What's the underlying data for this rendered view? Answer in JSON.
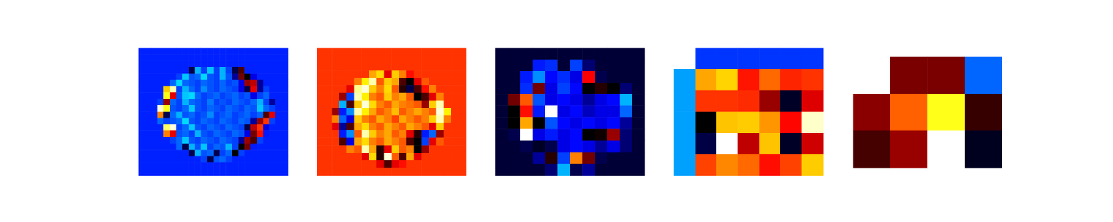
{
  "chart_data": [
    {
      "type": "heatmap",
      "tick_labels": false,
      "color_range": [
        -1,
        1
      ],
      "cells": [
        [
          -0.42,
          -0.42,
          -0.42,
          -0.42,
          -0.42,
          -0.42,
          -0.42,
          -0.42,
          -0.42,
          -0.42,
          -0.42,
          -0.42,
          -0.42,
          -0.42,
          -0.42,
          -0.42,
          -0.42,
          -0.42,
          -0.42,
          -0.42,
          -0.42,
          -0.42,
          -0.42,
          -0.42
        ],
        [
          -0.42,
          -0.42,
          -0.42,
          -0.42,
          -0.42,
          -0.42,
          -0.42,
          -0.42,
          -0.42,
          -0.42,
          -0.42,
          -0.42,
          -0.42,
          -0.42,
          -0.42,
          -0.42,
          -0.42,
          -0.42,
          -0.42,
          -0.42,
          -0.42,
          -0.42,
          -0.42,
          -0.42
        ],
        [
          -0.42,
          -0.42,
          -0.42,
          -0.42,
          -0.42,
          -0.42,
          -0.42,
          -0.42,
          -0.42,
          -0.42,
          -0.42,
          -0.42,
          -0.42,
          -0.42,
          -0.42,
          -0.42,
          -0.42,
          -0.42,
          -0.42,
          -0.42,
          -0.42,
          -0.42,
          -0.42,
          -0.42
        ],
        [
          -0.42,
          -0.42,
          -0.42,
          -0.42,
          -0.42,
          -0.42,
          -0.42,
          -0.42,
          -0.1,
          -0.8,
          -0.5,
          -0.85,
          -0.5,
          -0.8,
          -0.5,
          -0.1,
          0.1,
          -0.42,
          -0.42,
          -0.42,
          -0.42,
          -0.42,
          -0.42,
          -0.42
        ],
        [
          -0.42,
          -0.42,
          -0.42,
          -0.42,
          -0.42,
          -0.42,
          -0.5,
          -0.85,
          -0.55,
          -0.6,
          -0.9,
          -0.55,
          -0.5,
          -0.8,
          -0.55,
          -0.2,
          0.15,
          0.0,
          -0.3,
          -0.42,
          -0.42,
          -0.42,
          -0.42,
          -0.42
        ],
        [
          -0.42,
          -0.42,
          -0.42,
          -0.42,
          -0.42,
          -0.6,
          -0.9,
          -0.6,
          -0.55,
          -0.5,
          -0.6,
          -0.55,
          -0.5,
          -0.6,
          -0.5,
          -0.55,
          -0.3,
          0.2,
          0.25,
          -0.2,
          -0.42,
          -0.42,
          -0.42,
          -0.42
        ],
        [
          -0.42,
          -0.42,
          -0.42,
          -0.42,
          0.6,
          0.9,
          -0.5,
          -0.8,
          -0.6,
          -0.5,
          -0.7,
          -0.55,
          -0.5,
          -0.6,
          -0.55,
          -0.5,
          -0.3,
          -0.1,
          0.3,
          -0.2,
          -0.5,
          -0.42,
          -0.42,
          -0.42
        ],
        [
          -0.42,
          -0.42,
          -0.42,
          -0.42,
          0.7,
          0.3,
          -0.55,
          -0.85,
          -0.9,
          -0.6,
          -0.5,
          -0.55,
          -0.6,
          -0.5,
          -0.55,
          -0.6,
          -0.5,
          -0.55,
          -0.3,
          -0.5,
          -0.6,
          -0.42,
          -0.42,
          -0.42
        ],
        [
          -0.42,
          -0.42,
          -0.42,
          -0.5,
          0.2,
          -0.6,
          -0.5,
          -0.8,
          -0.6,
          -0.55,
          -0.5,
          -0.65,
          -0.5,
          -0.55,
          -0.5,
          -0.6,
          -0.55,
          -0.5,
          -0.6,
          -0.8,
          -0.5,
          -0.2,
          -0.42,
          -0.42
        ],
        [
          -0.42,
          -0.42,
          -0.42,
          0.95,
          0.7,
          -0.55,
          -0.5,
          -0.6,
          -0.85,
          -0.55,
          -0.5,
          -0.6,
          -0.55,
          -0.5,
          -0.6,
          -0.55,
          -0.5,
          -0.6,
          -0.55,
          -0.85,
          -0.6,
          -0.5,
          -0.42,
          -0.42
        ],
        [
          -0.42,
          -0.42,
          -0.42,
          0.5,
          -0.1,
          -0.6,
          -0.8,
          -0.55,
          -0.6,
          -0.5,
          -0.55,
          -0.7,
          -0.5,
          -0.55,
          -0.6,
          -0.5,
          -0.55,
          -0.6,
          -0.5,
          -0.6,
          0.1,
          0.3,
          -0.42,
          -0.42
        ],
        [
          -0.42,
          -0.42,
          -0.42,
          -0.6,
          -0.5,
          -0.55,
          -0.6,
          -0.9,
          -0.55,
          -0.5,
          -0.6,
          -0.55,
          -0.5,
          -0.6,
          -0.55,
          -0.5,
          -0.6,
          -0.55,
          -0.2,
          0.2,
          0.4,
          -0.5,
          -0.42,
          -0.42
        ],
        [
          -0.42,
          -0.42,
          -0.42,
          -0.42,
          0.8,
          0.95,
          -0.5,
          -0.6,
          -0.85,
          -0.55,
          -0.5,
          -0.6,
          -0.55,
          -0.5,
          -0.6,
          -0.55,
          -0.5,
          -0.1,
          0.25,
          0.4,
          -0.3,
          -0.42,
          -0.42,
          -0.42
        ],
        [
          -0.42,
          -0.42,
          -0.42,
          -0.42,
          0.5,
          0.3,
          -0.55,
          -0.6,
          -0.5,
          -0.8,
          -0.55,
          -0.5,
          -0.6,
          -0.55,
          -0.5,
          -0.6,
          -0.55,
          -0.3,
          0.15,
          0.35,
          -0.4,
          -0.42,
          -0.42,
          -0.42
        ],
        [
          -0.42,
          -0.42,
          -0.42,
          -0.42,
          -0.42,
          -0.5,
          -0.6,
          -0.85,
          -0.55,
          -0.5,
          -0.6,
          -0.55,
          -0.5,
          -0.6,
          -0.55,
          -0.5,
          -0.2,
          0.2,
          0.1,
          -0.5,
          -0.42,
          -0.42,
          -0.42,
          -0.42
        ],
        [
          -0.42,
          -0.42,
          -0.42,
          -0.42,
          -0.42,
          -0.42,
          -0.6,
          -0.1,
          -0.8,
          -0.55,
          -0.85,
          -0.5,
          -0.6,
          -0.55,
          -0.8,
          -0.5,
          0.0,
          0.15,
          -0.4,
          -0.42,
          -0.42,
          -0.42,
          -0.42,
          -0.42
        ],
        [
          -0.42,
          -0.42,
          -0.42,
          -0.42,
          -0.42,
          -0.42,
          -0.42,
          -0.42,
          -0.1,
          -0.8,
          -0.55,
          -0.6,
          -0.1,
          -0.5,
          -0.6,
          0.0,
          -0.5,
          -0.42,
          -0.42,
          -0.42,
          -0.42,
          -0.42,
          -0.42,
          -0.42
        ],
        [
          -0.42,
          -0.42,
          -0.42,
          -0.42,
          -0.42,
          -0.42,
          -0.42,
          -0.42,
          -0.42,
          -0.42,
          -0.5,
          -0.1,
          -0.55,
          -0.6,
          -0.5,
          -0.42,
          -0.42,
          -0.42,
          -0.42,
          -0.42,
          -0.42,
          -0.42,
          -0.42,
          -0.42
        ],
        [
          -0.42,
          -0.42,
          -0.42,
          -0.42,
          -0.42,
          -0.42,
          -0.42,
          -0.42,
          -0.42,
          -0.42,
          -0.42,
          -0.42,
          -0.42,
          -0.42,
          -0.42,
          -0.42,
          -0.42,
          -0.42,
          -0.42,
          -0.42,
          -0.42,
          -0.42,
          -0.42,
          -0.42
        ],
        [
          -0.42,
          -0.42,
          -0.42,
          -0.42,
          -0.42,
          -0.42,
          -0.42,
          -0.42,
          -0.42,
          -0.42,
          -0.42,
          -0.42,
          -0.42,
          -0.42,
          -0.42,
          -0.42,
          -0.42,
          -0.42,
          -0.42,
          -0.42,
          -0.42,
          -0.42,
          -0.42,
          -0.42
        ]
      ]
    },
    {
      "type": "heatmap",
      "tick_labels": false,
      "color_range": [
        -1,
        1
      ],
      "cells": [
        [
          0.4,
          0.4,
          0.4,
          0.4,
          0.4,
          0.4,
          0.4,
          0.4,
          0.4,
          0.4,
          0.4,
          0.4,
          0.4,
          0.4,
          0.4,
          0.4,
          0.4,
          0.4,
          0.4,
          0.4
        ],
        [
          0.4,
          0.4,
          0.4,
          0.4,
          0.4,
          0.4,
          0.4,
          0.4,
          0.4,
          0.4,
          0.4,
          0.4,
          0.4,
          0.4,
          0.4,
          0.4,
          0.4,
          0.4,
          0.4,
          0.4
        ],
        [
          0.4,
          0.4,
          0.4,
          0.4,
          0.4,
          0.4,
          0.4,
          0.4,
          0.4,
          0.4,
          0.4,
          0.4,
          0.4,
          0.4,
          0.4,
          0.4,
          0.4,
          0.4,
          0.4,
          0.4
        ],
        [
          0.4,
          0.4,
          0.4,
          0.4,
          0.4,
          0.4,
          0.4,
          0.55,
          0.62,
          0.3,
          0.6,
          0.5,
          0.35,
          0.4,
          0.4,
          0.4,
          0.4,
          0.4,
          0.4,
          0.4
        ],
        [
          0.4,
          0.4,
          0.4,
          0.4,
          0.4,
          0.5,
          0.65,
          0.9,
          0.45,
          0.6,
          0.55,
          0.1,
          0.0,
          0.3,
          0.45,
          0.4,
          0.4,
          0.4,
          0.4,
          0.4
        ],
        [
          0.4,
          0.4,
          0.4,
          0.4,
          0.3,
          0.85,
          0.95,
          0.6,
          0.5,
          0.62,
          0.45,
          0.05,
          -0.1,
          0.1,
          0.35,
          0.5,
          0.4,
          0.4,
          0.4,
          0.4
        ],
        [
          0.4,
          0.4,
          0.4,
          0.2,
          -0.5,
          0.9,
          0.65,
          0.5,
          0.45,
          0.6,
          0.5,
          0.55,
          0.45,
          0.0,
          0.1,
          0.3,
          0.5,
          0.4,
          0.4,
          0.4
        ],
        [
          0.4,
          0.4,
          0.4,
          -0.8,
          0.1,
          0.6,
          0.95,
          0.62,
          0.5,
          0.45,
          0.55,
          0.5,
          0.48,
          0.45,
          0.2,
          0.6,
          0.9,
          0.4,
          0.4,
          0.4
        ],
        [
          0.4,
          0.4,
          0.2,
          -0.4,
          -0.7,
          0.9,
          0.65,
          0.55,
          0.45,
          0.5,
          0.58,
          0.45,
          0.5,
          0.55,
          0.5,
          0.45,
          0.95,
          0.65,
          0.4,
          0.4
        ],
        [
          0.4,
          0.4,
          0.5,
          -0.6,
          -0.3,
          0.6,
          0.5,
          0.45,
          0.55,
          0.5,
          0.42,
          0.55,
          0.5,
          0.45,
          0.5,
          0.6,
          0.9,
          0.5,
          0.4,
          0.4
        ],
        [
          0.4,
          0.4,
          0.3,
          -0.2,
          0.1,
          0.55,
          0.62,
          0.5,
          0.45,
          0.55,
          0.5,
          0.45,
          0.55,
          0.5,
          0.45,
          0.3,
          0.6,
          0.4,
          0.4,
          0.4
        ],
        [
          0.4,
          0.4,
          0.4,
          -0.4,
          -0.7,
          0.45,
          0.9,
          0.6,
          0.5,
          0.55,
          0.45,
          0.5,
          0.3,
          0.05,
          -0.4,
          -0.6,
          0.2,
          0.4,
          0.4,
          0.4
        ],
        [
          0.4,
          0.4,
          0.4,
          0.1,
          -0.3,
          0.55,
          0.62,
          0.5,
          0.45,
          0.55,
          0.5,
          0.45,
          0.1,
          0.0,
          -0.5,
          0.3,
          0.45,
          0.4,
          0.4,
          0.4
        ],
        [
          0.4,
          0.4,
          0.4,
          0.4,
          0.5,
          0.45,
          0.9,
          0.55,
          0.05,
          0.3,
          0.6,
          0.45,
          0.5,
          0.0,
          0.2,
          0.4,
          0.4,
          0.4,
          0.4,
          0.4
        ],
        [
          0.4,
          0.4,
          0.4,
          0.4,
          0.4,
          0.4,
          0.3,
          0.62,
          0.05,
          0.95,
          0.45,
          0.1,
          0.55,
          0.3,
          0.4,
          0.4,
          0.4,
          0.4,
          0.4,
          0.4
        ],
        [
          0.4,
          0.4,
          0.4,
          0.4,
          0.4,
          0.4,
          0.4,
          0.4,
          0.3,
          0.1,
          0.3,
          0.35,
          0.4,
          0.4,
          0.4,
          0.4,
          0.4,
          0.4,
          0.4,
          0.4
        ],
        [
          0.4,
          0.4,
          0.4,
          0.4,
          0.4,
          0.4,
          0.4,
          0.4,
          0.4,
          0.4,
          0.4,
          0.4,
          0.4,
          0.4,
          0.4,
          0.4,
          0.4,
          0.4,
          0.4,
          0.4
        ]
      ]
    },
    {
      "type": "heatmap",
      "tick_labels": false,
      "color_range": [
        -1,
        1
      ],
      "cells": [
        [
          -0.07,
          -0.07,
          -0.07,
          -0.07,
          -0.07,
          -0.07,
          -0.07,
          -0.07,
          -0.07,
          -0.07,
          -0.07,
          -0.07
        ],
        [
          -0.07,
          -0.07,
          -0.07,
          -0.4,
          -0.45,
          -0.07,
          -0.5,
          -0.15,
          -0.07,
          -0.07,
          -0.07,
          -0.07
        ],
        [
          -0.07,
          -0.07,
          -0.4,
          -0.7,
          -0.35,
          -0.45,
          -0.3,
          0.33,
          -0.1,
          -0.07,
          -0.07,
          -0.07
        ],
        [
          -0.07,
          -0.07,
          -0.45,
          0.15,
          -0.3,
          -0.5,
          -0.35,
          0.0,
          0.05,
          0.0,
          -0.15,
          -0.07
        ],
        [
          -0.07,
          0.15,
          0.45,
          -0.55,
          -0.3,
          -0.35,
          -0.3,
          -0.2,
          -0.3,
          -0.35,
          -0.8,
          -0.07
        ],
        [
          -0.07,
          0.0,
          0.35,
          -0.4,
          1.0,
          -0.3,
          -0.35,
          -0.25,
          -0.3,
          -0.3,
          -0.6,
          -0.07
        ],
        [
          -0.07,
          0.0,
          0.55,
          0.0,
          -0.55,
          -0.35,
          -0.3,
          -0.35,
          -0.3,
          -0.35,
          -0.2,
          -0.07
        ],
        [
          -0.07,
          -0.1,
          1.0,
          -0.3,
          -0.4,
          -0.3,
          -0.35,
          0.0,
          0.02,
          0.2,
          -0.15,
          -0.07
        ],
        [
          -0.07,
          -0.07,
          -0.1,
          -0.05,
          -0.1,
          -0.3,
          -0.35,
          -0.3,
          -0.2,
          -0.3,
          -0.15,
          -0.07
        ],
        [
          -0.07,
          -0.07,
          -0.07,
          -0.2,
          0.05,
          -0.5,
          0.5,
          0.15,
          -0.1,
          -0.07,
          -0.07,
          -0.07
        ],
        [
          -0.07,
          -0.07,
          -0.07,
          -0.07,
          -0.15,
          -0.8,
          -0.1,
          -0.2,
          -0.07,
          -0.07,
          -0.07,
          -0.07
        ]
      ]
    },
    {
      "type": "heatmap",
      "tick_labels": false,
      "color_range": [
        -1,
        1
      ],
      "cells": [
        [
          null,
          -0.47,
          -0.47,
          -0.47,
          -0.47,
          -0.47,
          -0.47
        ],
        [
          -0.75,
          0.55,
          0.61,
          0.36,
          0.47,
          0.38,
          0.4
        ],
        [
          -0.75,
          0.4,
          0.4,
          0.39,
          0.2,
          -0.05,
          0.29
        ],
        [
          -0.75,
          0.0,
          0.59,
          0.6,
          0.53,
          0.34,
          0.93
        ],
        [
          -0.75,
          -0.09,
          1.0,
          0.25,
          0.59,
          -0.05,
          0.27
        ],
        [
          -0.75,
          0.42,
          0.51,
          0.47,
          0.35,
          0.42,
          0.6
        ]
      ]
    },
    {
      "type": "heatmap",
      "tick_labels": false,
      "color_range": [
        -1,
        1
      ],
      "cells": [
        [
          null,
          0.16,
          0.16,
          -0.6
        ],
        [
          0.18,
          0.46,
          0.7,
          0.07
        ],
        [
          0.09,
          0.2,
          1.0,
          -0.04
        ]
      ]
    }
  ]
}
